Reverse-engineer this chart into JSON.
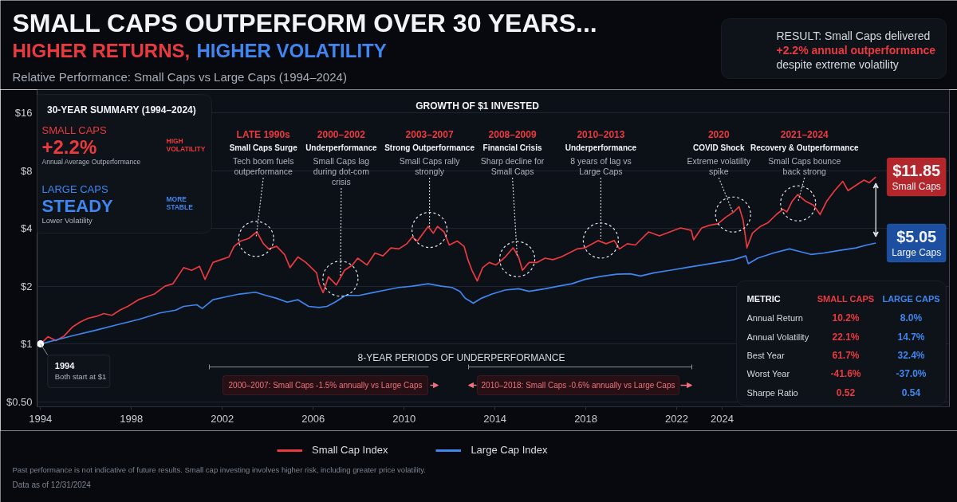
{
  "chart_data": {
    "type": "line",
    "title": "SMALL CAPS OUTPERFORM OVER 30 YEARS...",
    "subtitle": "Relative Performance: Small Caps vs Large Caps (1994–2024)",
    "xlim": [
      1993.85,
      2034.0
    ],
    "ylim": [
      0.47,
      21.2
    ],
    "log": true,
    "xticks": [
      1994,
      1998,
      2002,
      2006,
      2010,
      2014,
      2018,
      2022,
      2024
    ],
    "yticks": [
      {
        "value": 0.5,
        "label": "$0.50"
      },
      {
        "value": 1,
        "label": "$1"
      },
      {
        "value": 2,
        "label": "$2"
      },
      {
        "value": 4,
        "label": "$4"
      },
      {
        "value": 8,
        "label": "$8"
      },
      {
        "value": 16,
        "label": "$16"
      }
    ],
    "grid": "y",
    "legend": "bottom",
    "line_style": "solid",
    "series": [
      {
        "name": "Small Cap Index",
        "color": "#eb3a3f",
        "x": [
          1994.0,
          1994.33,
          1994.68,
          1995.04,
          1995.39,
          1995.74,
          1996.09,
          1996.44,
          1996.79,
          1997.14,
          1997.49,
          1997.84,
          1998.31,
          1998.66,
          1999.01,
          1999.48,
          1999.83,
          2000.3,
          2000.65,
          2001.0,
          2001.24,
          2001.59,
          2001.94,
          2002.29,
          2002.52,
          2002.81,
          2003.16,
          2003.52,
          2003.81,
          2004.04,
          2004.39,
          2004.74,
          2004.98,
          2005.33,
          2005.68,
          2006.15,
          2006.26,
          2006.44,
          2006.67,
          2007.02,
          2007.38,
          2007.73,
          2007.96,
          2008.37,
          2008.72,
          2009.07,
          2009.42,
          2009.77,
          2010.12,
          2010.36,
          2010.59,
          2011.06,
          2011.29,
          2011.47,
          2011.76,
          2011.99,
          2012.34,
          2012.64,
          2012.81,
          2012.99,
          2013.22,
          2013.46,
          2013.75,
          2014.04,
          2014.45,
          2014.8,
          2015.04,
          2015.21,
          2015.5,
          2015.85,
          2016.2,
          2016.55,
          2016.91,
          2017.26,
          2017.61,
          2017.96,
          2018.54,
          2018.89,
          2019.25,
          2019.48,
          2019.83,
          2020.18,
          2020.47,
          2020.76,
          2021.24,
          2021.7,
          2022.17,
          2022.64,
          2022.74,
          2023.1,
          2023.46,
          2023.81,
          2024.16,
          2024.51,
          2024.74,
          2024.92,
          2025.09,
          2025.33,
          2025.68,
          2026.03,
          2026.38,
          2026.67,
          2026.85,
          2027.08,
          2027.32,
          2027.67,
          2028.02,
          2028.31,
          2028.6,
          2028.95,
          2029.31,
          2029.54,
          2029.89,
          2030.24,
          2030.47,
          2030.76
        ],
        "values": [
          1.0,
          1.09,
          1.04,
          1.1,
          1.22,
          1.3,
          1.36,
          1.39,
          1.44,
          1.41,
          1.5,
          1.57,
          1.7,
          1.76,
          1.82,
          2.0,
          2.06,
          2.5,
          2.42,
          2.54,
          2.17,
          2.66,
          2.75,
          2.84,
          3.23,
          3.44,
          3.55,
          3.84,
          3.33,
          3.13,
          3.23,
          2.93,
          2.5,
          2.84,
          2.66,
          2.35,
          2.06,
          1.85,
          2.24,
          2.03,
          2.42,
          2.58,
          2.8,
          2.58,
          2.98,
          2.88,
          3.17,
          3.13,
          3.33,
          3.61,
          3.44,
          4.1,
          3.78,
          4.1,
          3.84,
          3.28,
          3.44,
          3.23,
          2.75,
          2.42,
          2.13,
          2.5,
          2.66,
          2.58,
          2.84,
          3.17,
          2.84,
          2.42,
          2.66,
          2.66,
          2.8,
          2.75,
          2.84,
          2.98,
          3.13,
          3.17,
          3.46,
          3.33,
          3.46,
          3.13,
          3.33,
          3.28,
          3.55,
          3.84,
          3.66,
          3.84,
          4.03,
          3.91,
          3.49,
          4.03,
          4.16,
          4.23,
          4.58,
          4.88,
          5.2,
          4.43,
          3.17,
          3.78,
          4.1,
          4.3,
          4.73,
          5.04,
          4.88,
          5.55,
          6.01,
          5.55,
          5.29,
          4.73,
          5.55,
          6.3,
          7.05,
          6.3,
          6.72,
          7.15,
          6.93,
          7.43
        ]
      },
      {
        "name": "Large Cap Index",
        "color": "#3f86f0",
        "x": [
          1994.0,
          1994.57,
          1995.5,
          1996.44,
          1997.38,
          1998.31,
          1999.25,
          1999.95,
          2000.3,
          2000.88,
          2001.12,
          2001.59,
          2002.17,
          2002.75,
          2003.46,
          2003.92,
          2004.39,
          2004.86,
          2005.33,
          2005.8,
          2006.26,
          2006.61,
          2006.96,
          2007.43,
          2008.02,
          2008.6,
          2009.19,
          2009.77,
          2010.36,
          2011.06,
          2011.64,
          2012.11,
          2012.46,
          2012.69,
          2013.05,
          2013.4,
          2013.87,
          2014.45,
          2015.04,
          2015.5,
          2016.2,
          2016.79,
          2017.38,
          2017.96,
          2018.66,
          2019.36,
          2019.95,
          2020.41,
          2021.0,
          2021.7,
          2022.4,
          2023.1,
          2023.81,
          2024.51,
          2025.04,
          2025.15,
          2025.56,
          2026.26,
          2026.96,
          2027.43,
          2027.9,
          2028.48,
          2029.19,
          2029.89,
          2030.36,
          2030.76
        ],
        "values": [
          1.0,
          1.04,
          1.11,
          1.18,
          1.26,
          1.34,
          1.45,
          1.5,
          1.57,
          1.6,
          1.53,
          1.7,
          1.76,
          1.82,
          1.86,
          1.79,
          1.73,
          1.65,
          1.7,
          1.57,
          1.55,
          1.57,
          1.65,
          1.79,
          1.79,
          1.85,
          1.91,
          1.97,
          2.0,
          2.06,
          2.0,
          1.97,
          1.88,
          1.73,
          1.63,
          1.73,
          1.82,
          1.91,
          1.94,
          1.88,
          1.94,
          2.0,
          2.06,
          2.17,
          2.25,
          2.31,
          2.32,
          2.26,
          2.35,
          2.42,
          2.5,
          2.58,
          2.66,
          2.75,
          2.88,
          2.62,
          2.8,
          2.98,
          3.13,
          3.03,
          2.93,
          2.98,
          3.08,
          3.17,
          3.28,
          3.36
        ]
      }
    ],
    "annotations": [
      "HIGHER RETURNS,",
      "HIGHER VOLATILITY",
      "GROWTH OF $1 INVESTED",
      "30-YEAR SUMMARY (1994–2024)",
      "SMALL CAPS",
      "+2.2%",
      "Annual Average Outperformance",
      "HIGH\nVOLATILITY",
      "LARGE CAPS",
      "STEADY",
      "Lower Volatility",
      "MORE\nSTABLE",
      "RESULT: Small Caps delivered",
      "+2.2% annual outperformance",
      "despite extreme volatility",
      {
        "text": "LATE 1990s\nSmall Caps Surge\nTech boom fuels\noutperformance",
        "x": 2003.49,
        "y": 3.53
      },
      {
        "text": "2000–2002\nUnderperformance\nSmall Caps lag\nduring dot-com\ncrisis",
        "x": 2007.2,
        "y": 2.19
      },
      {
        "text": "2003–2007\nStrong Outperformance\nSmall Caps rally\nstrongly",
        "x": 2011.12,
        "y": 3.93
      },
      {
        "text": "2008–2009\nFinancial Crisis\nSharp decline for\nSmall Caps",
        "x": 2014.98,
        "y": 2.77
      },
      {
        "text": "2010–2013\nUnderperformance\n8 years of lag vs\nLarge Caps",
        "x": 2018.66,
        "y": 3.46
      },
      {
        "text": "2020\nCOVID Shock\nExtreme volatility\nspike",
        "x": 2024.48,
        "y": 4.73
      },
      {
        "text": "2021–2024\nRecovery & Outperformance\nSmall Caps bounce\nback strong",
        "x": 2027.34,
        "y": 5.41
      },
      {
        "text": "1994\nBoth start at $1",
        "x": 1994,
        "y": 1
      },
      "$11.85\nSmall Caps",
      "$5.05\nLarge Caps",
      "8-YEAR PERIODS OF UNDERPERFORMANCE",
      "2000–2007: Small Caps -1.5% annually vs Large Caps",
      "2010–2018: Small Caps -0.6% annually vs Large Caps",
      "METRIC",
      "SMALL CAPS",
      "LARGE CAPS",
      "Annual Return",
      "10.2%",
      "8.0%",
      "Annual Volatility",
      "22.1%",
      "14.7%",
      "Best Year",
      "61.7%",
      "32.4%",
      "Worst Year",
      "-41.6%",
      "-37.0%",
      "Sharpe Ratio",
      "0.52",
      "0.54",
      "Past performance is not indicative of future results. Small cap investing involves higher risk, including greater price volatility.",
      "Data as of 12/31/2024"
    ]
  }
}
